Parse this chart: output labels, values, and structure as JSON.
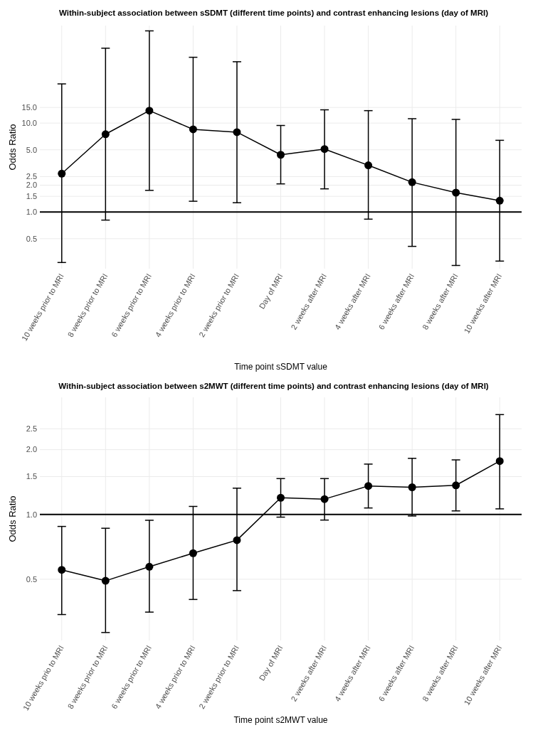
{
  "chart_data": [
    {
      "type": "line",
      "title": "Within-subject association between sSDMT (different time points) and contrast enhancing lesions (day of MRI)",
      "xlabel": "Time point sSDMT value",
      "ylabel": "Odds Ratio",
      "categories": [
        "10 weeks prior to MRI",
        "8 weeks prior to MRI",
        "6 weeks prior to MRI",
        "4 weeks prior to MRI",
        "2 weeks prior to MRI",
        "Day of MRI",
        "2 weeks after MRI",
        "4 weeks after MRI",
        "6 weeks after MRI",
        "8 weeks after MRI",
        "10 weeks after MRI"
      ],
      "series": [
        {
          "color": "#000000",
          "values": [
            2.7,
            7.5,
            13.8,
            8.5,
            7.9,
            4.4,
            5.1,
            3.35,
            2.16,
            1.65,
            1.34
          ],
          "errors": [
            [
              0.27,
              27.6
            ],
            [
              0.81,
              69.6
            ],
            [
              1.75,
              109
            ],
            [
              1.32,
              55
            ],
            [
              1.27,
              49
            ],
            [
              2.07,
              9.4
            ],
            [
              1.82,
              14.1
            ],
            [
              0.83,
              13.8
            ],
            [
              0.41,
              11.2
            ],
            [
              0.25,
              11.0
            ],
            [
              0.28,
              6.4
            ]
          ]
        }
      ],
      "log": true,
      "ylim": [
        0.23,
        125
      ],
      "yticks": [
        0.5,
        {
          "value": 1,
          "label": "1.0"
        },
        1.5,
        {
          "value": 2,
          "label": "2.0"
        },
        2.5,
        {
          "value": 5,
          "label": "5.0"
        },
        {
          "value": 10,
          "label": "10.0"
        },
        {
          "value": 15,
          "label": "15.0"
        }
      ],
      "ref_lines": [
        {
          "axis": "y",
          "value": 1.0,
          "color": "#000000"
        }
      ],
      "grid": true,
      "marker": "circle",
      "line_style": "solid"
    },
    {
      "type": "line",
      "title": "Within-subject association between s2MWT (different time points) and contrast enhancing lesions (day of MRI)",
      "xlabel": "Time point s2MWT value",
      "ylabel": "Odds Ratio",
      "categories": [
        "10 weeks prio to MRI",
        "8 weeks prior to MRI",
        "6 weeks prior to MRI",
        "4 weeks prior to MRI",
        "2 weeks prior to MRI",
        "Day of MRI",
        "2 weeks after MRI",
        "4 weeks after MRI",
        "6 weeks after MRI",
        "8 weeks after MRI",
        "10 weeks after MRI"
      ],
      "series": [
        {
          "color": "#000000",
          "values": [
            0.553,
            0.492,
            0.572,
            0.661,
            0.76,
            1.196,
            1.179,
            1.357,
            1.338,
            1.366,
            1.77
          ],
          "errors": [
            [
              0.343,
              0.88
            ],
            [
              0.283,
              0.863
            ],
            [
              0.352,
              0.94
            ],
            [
              0.403,
              1.09
            ],
            [
              0.443,
              1.325
            ],
            [
              0.972,
              1.468
            ],
            [
              0.942,
              1.468
            ],
            [
              1.072,
              1.714
            ],
            [
              0.984,
              1.823
            ],
            [
              1.039,
              1.793
            ],
            [
              1.062,
              2.91
            ]
          ]
        }
      ],
      "log": true,
      "ylim": [
        0.26,
        3.5
      ],
      "yticks": [
        0.5,
        {
          "value": 1,
          "label": "1.0"
        },
        1.5,
        {
          "value": 2,
          "label": "2.0"
        },
        2.5
      ],
      "ref_lines": [
        {
          "axis": "y",
          "value": 1.0,
          "color": "#000000"
        }
      ],
      "grid": true,
      "marker": "circle",
      "line_style": "solid"
    }
  ]
}
